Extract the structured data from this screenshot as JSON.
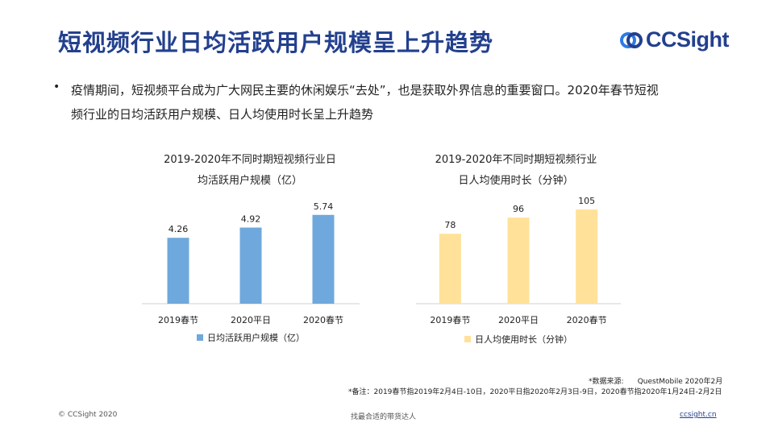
{
  "title": "短视频行业日均活跃用户规模呈上升趋势",
  "logo": {
    "text": "CCSight",
    "icon": "ccsight-logo-icon",
    "color": "#23408e"
  },
  "bullet": {
    "line1": "疫情期间，短视频平台成为广大网民主要的休闲娱乐“去处”，也是获取外界信息的重要窗口。2020年春节短视",
    "line2": "频行业的日均活跃用户规模、日人均使用时长呈上升趋势"
  },
  "chart_data": [
    {
      "type": "bar",
      "title_line1": "2019-2020年不同时期短视频行业日",
      "title_line2": "均活跃用户规模（亿）",
      "categories": [
        "2019春节",
        "2020平日",
        "2020春节"
      ],
      "series": [
        {
          "name": "日均活跃用户规模（亿）",
          "values": [
            4.26,
            4.92,
            5.74
          ],
          "labels": [
            "4.26",
            "4.92",
            "5.74"
          ],
          "color": "#6fa8dc"
        }
      ],
      "ylim": [
        0,
        6.3
      ],
      "legend": "bottom",
      "grid": false
    },
    {
      "type": "bar",
      "title_line1": "2019-2020年不同时期短视频行业",
      "title_line2": "日人均使用时长（分钟）",
      "categories": [
        "2019春节",
        "2020平日",
        "2020春节"
      ],
      "series": [
        {
          "name": "日人均使用时长（分钟）",
          "values": [
            78,
            96,
            105
          ],
          "labels": [
            "78",
            "96",
            "105"
          ],
          "color": "#ffe199"
        }
      ],
      "ylim": [
        0,
        115
      ],
      "legend": "bottom",
      "grid": false
    }
  ],
  "notes": {
    "source_line": "*数据来源:      QuestMobile 2020年2月",
    "remark_line": "*备注：2019春节指2019年2月4日-10日，2020平日指2020年2月3日-9日，2020春节指2020年1月24日-2月2日"
  },
  "footer": {
    "copyright": "© CCSight 2020",
    "slogan": "找最合适的带货达人",
    "link": "ccsight.cn"
  }
}
